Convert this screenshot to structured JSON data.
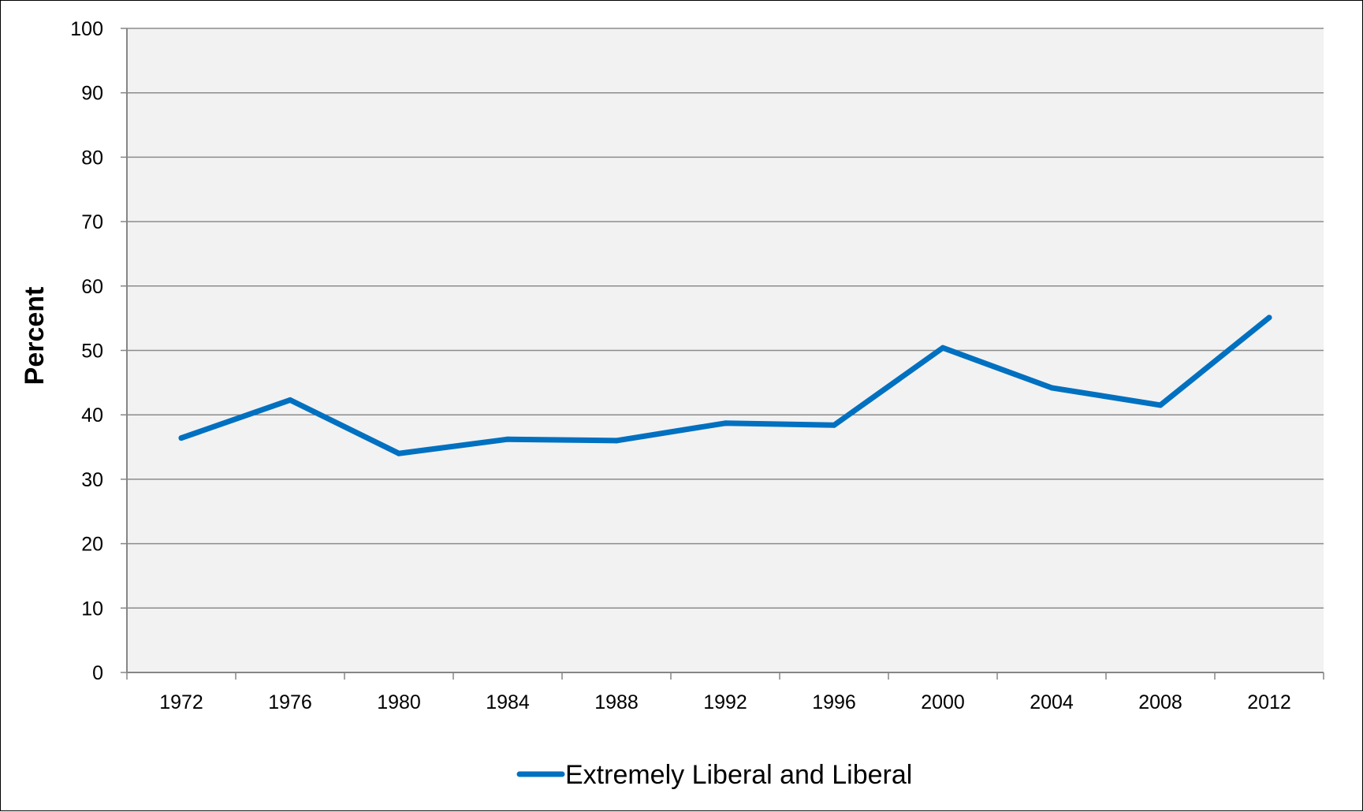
{
  "chart_data": {
    "type": "line",
    "title": "",
    "xlabel": "",
    "ylabel": "Percent",
    "ylim": [
      0,
      100
    ],
    "yticks": [
      "0",
      "10",
      "20",
      "30",
      "40",
      "50",
      "60",
      "70",
      "80",
      "90",
      "100"
    ],
    "categories": [
      "1972",
      "1976",
      "1980",
      "1984",
      "1988",
      "1992",
      "1996",
      "2000",
      "2004",
      "2008",
      "2012"
    ],
    "series": [
      {
        "name": "Extremely Liberal and Liberal",
        "color": "#0070c0",
        "values": [
          36.4,
          42.3,
          34.0,
          36.2,
          36.0,
          38.7,
          38.4,
          50.4,
          44.2,
          41.5,
          55.1
        ]
      }
    ],
    "grid": true,
    "legend": "bottom-center",
    "plot_background": "#f2f2f2"
  }
}
